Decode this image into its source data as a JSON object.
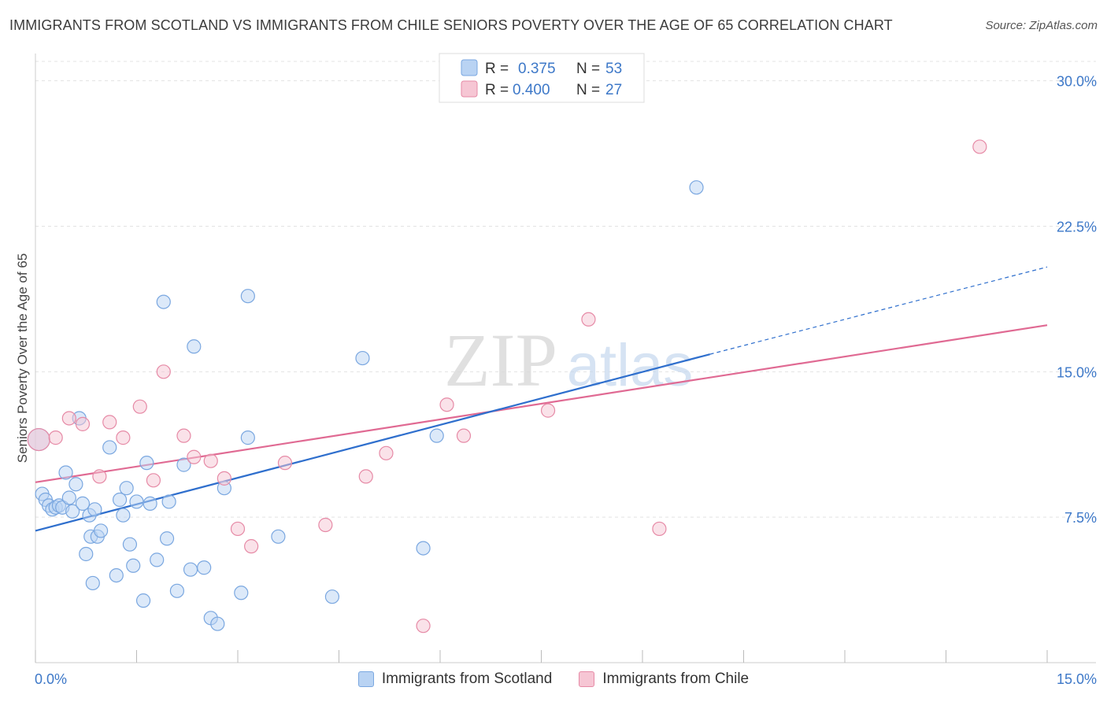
{
  "header": {
    "title": "IMMIGRANTS FROM SCOTLAND VS IMMIGRANTS FROM CHILE SENIORS POVERTY OVER THE AGE OF 65 CORRELATION CHART",
    "source": "Source: ZipAtlas.com"
  },
  "watermark": {
    "zip": "ZIP",
    "atlas": "atlas"
  },
  "colors": {
    "scotland_fill": "#b9d3f3",
    "scotland_stroke": "#7aa7e0",
    "scotland_line": "#2f6fcd",
    "chile_fill": "#f6c6d4",
    "chile_stroke": "#e68aa6",
    "chile_line": "#e06a93",
    "axis_text": "#3d78c8",
    "grid": "#e3e3e3"
  },
  "chart_data": {
    "type": "scatter",
    "title": "IMMIGRANTS FROM SCOTLAND VS IMMIGRANTS FROM CHILE SENIORS POVERTY OVER THE AGE OF 65 CORRELATION CHART",
    "xlabel": "",
    "ylabel": "Seniors Poverty Over the Age of 65",
    "xlim": [
      0,
      15
    ],
    "ylim": [
      0,
      31
    ],
    "x_tick_labels": [
      "0.0%",
      "15.0%"
    ],
    "y_ticks": [
      7.5,
      15.0,
      22.5,
      30.0
    ],
    "y_tick_labels": [
      "7.5%",
      "15.0%",
      "22.5%",
      "30.0%"
    ],
    "grid": true,
    "legend_position": "top-center",
    "legend": [
      {
        "r_label": "R = ",
        "r_value": "0.375",
        "n_label": "N = ",
        "n_value": "53"
      },
      {
        "r_label": "R = ",
        "r_value": "0.400",
        "n_label": "N = ",
        "n_value": "27"
      }
    ],
    "series": [
      {
        "name": "Immigrants from Scotland",
        "trend": {
          "x0": 0,
          "y0": 6.8,
          "x1": 10.0,
          "y1": 15.9,
          "dashed_to_x": 15.0,
          "dashed_to_y": 20.4
        },
        "points": [
          [
            0.05,
            11.5
          ],
          [
            0.1,
            8.7
          ],
          [
            0.15,
            8.4
          ],
          [
            0.2,
            8.1
          ],
          [
            0.25,
            7.9
          ],
          [
            0.3,
            8.0
          ],
          [
            0.35,
            8.1
          ],
          [
            0.4,
            8.0
          ],
          [
            0.45,
            9.8
          ],
          [
            0.5,
            8.5
          ],
          [
            0.55,
            7.8
          ],
          [
            0.6,
            9.2
          ],
          [
            0.65,
            12.6
          ],
          [
            0.7,
            8.2
          ],
          [
            0.75,
            5.6
          ],
          [
            0.8,
            7.6
          ],
          [
            0.82,
            6.5
          ],
          [
            0.85,
            4.1
          ],
          [
            0.88,
            7.9
          ],
          [
            0.92,
            6.5
          ],
          [
            0.97,
            6.8
          ],
          [
            1.1,
            11.1
          ],
          [
            1.2,
            4.5
          ],
          [
            1.25,
            8.4
          ],
          [
            1.3,
            7.6
          ],
          [
            1.35,
            9.0
          ],
          [
            1.4,
            6.1
          ],
          [
            1.45,
            5.0
          ],
          [
            1.5,
            8.3
          ],
          [
            1.6,
            3.2
          ],
          [
            1.65,
            10.3
          ],
          [
            1.7,
            8.2
          ],
          [
            1.8,
            5.3
          ],
          [
            1.9,
            18.6
          ],
          [
            1.95,
            6.4
          ],
          [
            1.98,
            8.3
          ],
          [
            2.1,
            3.7
          ],
          [
            2.2,
            10.2
          ],
          [
            2.3,
            4.8
          ],
          [
            2.35,
            16.3
          ],
          [
            2.5,
            4.9
          ],
          [
            2.6,
            2.3
          ],
          [
            2.7,
            2.0
          ],
          [
            2.8,
            9.0
          ],
          [
            3.05,
            3.6
          ],
          [
            3.15,
            11.6
          ],
          [
            3.15,
            18.9
          ],
          [
            3.6,
            6.5
          ],
          [
            4.4,
            3.4
          ],
          [
            4.85,
            15.7
          ],
          [
            5.75,
            5.9
          ],
          [
            5.95,
            11.7
          ],
          [
            9.8,
            24.5
          ]
        ]
      },
      {
        "name": "Immigrants from Chile",
        "trend": {
          "x0": 0,
          "y0": 9.3,
          "x1": 15.0,
          "y1": 17.4
        },
        "points": [
          [
            0.05,
            11.5
          ],
          [
            0.5,
            12.6
          ],
          [
            0.3,
            11.6
          ],
          [
            0.7,
            12.3
          ],
          [
            0.95,
            9.6
          ],
          [
            1.1,
            12.4
          ],
          [
            1.3,
            11.6
          ],
          [
            1.55,
            13.2
          ],
          [
            1.75,
            9.4
          ],
          [
            1.9,
            15.0
          ],
          [
            2.2,
            11.7
          ],
          [
            2.35,
            10.6
          ],
          [
            2.6,
            10.4
          ],
          [
            2.8,
            9.5
          ],
          [
            3.0,
            6.9
          ],
          [
            3.2,
            6.0
          ],
          [
            3.7,
            10.3
          ],
          [
            4.3,
            7.1
          ],
          [
            4.9,
            9.6
          ],
          [
            5.2,
            10.8
          ],
          [
            5.75,
            1.9
          ],
          [
            6.1,
            13.3
          ],
          [
            6.35,
            11.7
          ],
          [
            7.6,
            13.0
          ],
          [
            8.2,
            17.7
          ],
          [
            9.25,
            6.9
          ],
          [
            14.0,
            26.6
          ]
        ]
      }
    ]
  }
}
